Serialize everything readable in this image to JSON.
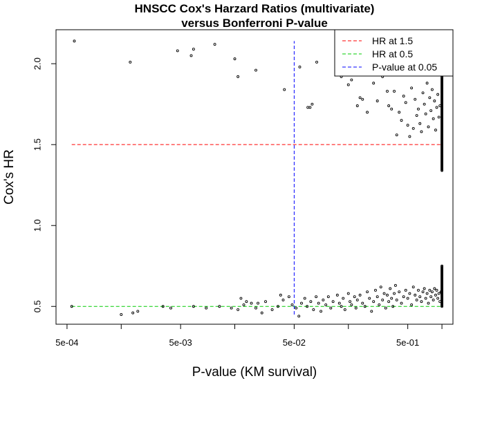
{
  "chart_data": {
    "type": "scatter",
    "title_line1": "HNSCC Cox's Harzard Ratios (multivariate)",
    "title_line2": "versus Bonferroni P-value",
    "xlabel": "P-value (KM survival)",
    "ylabel": "Cox's HR",
    "x_scale": "log10",
    "xlim": [
      0.0004,
      1.25
    ],
    "ylim": [
      0.39,
      2.21
    ],
    "x_ticks": [
      {
        "value": 0.0005,
        "label": "5e-04"
      },
      {
        "value": 0.005,
        "label": "5e-03"
      },
      {
        "value": 0.05,
        "label": "5e-02"
      },
      {
        "value": 0.5,
        "label": "5e-01"
      }
    ],
    "x_minor_ticks": [
      0.0015,
      0.015,
      0.15,
      1.0
    ],
    "y_ticks": [
      {
        "value": 0.5,
        "label": "0.5"
      },
      {
        "value": 1.0,
        "label": "1.0"
      },
      {
        "value": 1.5,
        "label": "1.5"
      },
      {
        "value": 2.0,
        "label": "2.0"
      }
    ],
    "grid": false,
    "legend_position": "top-right",
    "legend": [
      {
        "label": "HR at 1.5",
        "color": "#ff0000"
      },
      {
        "label": "HR at 0.5",
        "color": "#00cc00"
      },
      {
        "label": "P-value at 0.05",
        "color": "#0000ff"
      }
    ],
    "reference_lines": [
      {
        "orientation": "horizontal",
        "value": 1.5,
        "color": "#ff0000",
        "x_range": [
          0.00055,
          1.0
        ]
      },
      {
        "orientation": "horizontal",
        "value": 0.5,
        "color": "#00cc00",
        "x_range": [
          0.00055,
          1.0
        ]
      },
      {
        "orientation": "vertical",
        "value": 0.05,
        "color": "#0000ff",
        "y_range": [
          0.45,
          2.14
        ]
      }
    ],
    "points_high": [
      [
        0.00058,
        2.14
      ],
      [
        0.0018,
        2.01
      ],
      [
        0.0047,
        2.08
      ],
      [
        0.0062,
        2.05
      ],
      [
        0.0065,
        2.09
      ],
      [
        0.01,
        2.12
      ],
      [
        0.015,
        2.03
      ],
      [
        0.016,
        1.92
      ],
      [
        0.023,
        1.96
      ],
      [
        0.041,
        1.84
      ],
      [
        0.056,
        1.98
      ],
      [
        0.066,
        1.73
      ],
      [
        0.069,
        1.73
      ],
      [
        0.072,
        1.75
      ],
      [
        0.079,
        2.01
      ],
      [
        0.13,
        1.92
      ],
      [
        0.15,
        1.87
      ],
      [
        0.16,
        1.9
      ],
      [
        0.18,
        1.74
      ],
      [
        0.19,
        1.79
      ],
      [
        0.2,
        1.78
      ],
      [
        0.22,
        1.7
      ],
      [
        0.24,
        1.93
      ],
      [
        0.25,
        1.88
      ],
      [
        0.27,
        1.77
      ],
      [
        0.3,
        1.92
      ],
      [
        0.33,
        1.83
      ],
      [
        0.34,
        1.74
      ],
      [
        0.36,
        1.72
      ],
      [
        0.38,
        1.83
      ],
      [
        0.4,
        1.56
      ],
      [
        0.42,
        1.7
      ],
      [
        0.44,
        1.65
      ],
      [
        0.46,
        1.8
      ],
      [
        0.48,
        1.76
      ],
      [
        0.5,
        1.62
      ],
      [
        0.52,
        1.55
      ],
      [
        0.54,
        1.85
      ],
      [
        0.56,
        1.6
      ],
      [
        0.58,
        1.78
      ],
      [
        0.6,
        1.68
      ],
      [
        0.62,
        1.72
      ],
      [
        0.64,
        1.63
      ],
      [
        0.66,
        1.58
      ],
      [
        0.68,
        1.82
      ],
      [
        0.7,
        1.75
      ],
      [
        0.72,
        1.69
      ],
      [
        0.74,
        1.88
      ],
      [
        0.76,
        1.61
      ],
      [
        0.78,
        1.79
      ],
      [
        0.8,
        1.71
      ],
      [
        0.82,
        1.84
      ],
      [
        0.84,
        1.66
      ],
      [
        0.86,
        1.77
      ],
      [
        0.88,
        1.59
      ],
      [
        0.9,
        1.73
      ],
      [
        0.92,
        1.81
      ],
      [
        0.94,
        1.67
      ],
      [
        0.96,
        1.74
      ]
    ],
    "points_low": [
      [
        0.00055,
        0.5
      ],
      [
        0.0015,
        0.45
      ],
      [
        0.0019,
        0.46
      ],
      [
        0.0021,
        0.47
      ],
      [
        0.0035,
        0.5
      ],
      [
        0.0041,
        0.49
      ],
      [
        0.0065,
        0.5
      ],
      [
        0.0084,
        0.49
      ],
      [
        0.011,
        0.5
      ],
      [
        0.014,
        0.49
      ],
      [
        0.016,
        0.48
      ],
      [
        0.017,
        0.55
      ],
      [
        0.018,
        0.51
      ],
      [
        0.019,
        0.53
      ],
      [
        0.021,
        0.52
      ],
      [
        0.023,
        0.49
      ],
      [
        0.024,
        0.52
      ],
      [
        0.026,
        0.46
      ],
      [
        0.028,
        0.53
      ],
      [
        0.032,
        0.48
      ],
      [
        0.036,
        0.5
      ],
      [
        0.038,
        0.57
      ],
      [
        0.04,
        0.54
      ],
      [
        0.045,
        0.56
      ],
      [
        0.048,
        0.51
      ],
      [
        0.052,
        0.49
      ],
      [
        0.055,
        0.44
      ],
      [
        0.058,
        0.52
      ],
      [
        0.062,
        0.55
      ],
      [
        0.065,
        0.5
      ],
      [
        0.07,
        0.53
      ],
      [
        0.074,
        0.48
      ],
      [
        0.078,
        0.56
      ],
      [
        0.082,
        0.52
      ],
      [
        0.086,
        0.47
      ],
      [
        0.09,
        0.54
      ],
      [
        0.095,
        0.51
      ],
      [
        0.1,
        0.56
      ],
      [
        0.105,
        0.49
      ],
      [
        0.11,
        0.53
      ],
      [
        0.12,
        0.57
      ],
      [
        0.125,
        0.52
      ],
      [
        0.13,
        0.5
      ],
      [
        0.135,
        0.55
      ],
      [
        0.14,
        0.48
      ],
      [
        0.15,
        0.58
      ],
      [
        0.155,
        0.53
      ],
      [
        0.16,
        0.51
      ],
      [
        0.17,
        0.56
      ],
      [
        0.175,
        0.49
      ],
      [
        0.18,
        0.54
      ],
      [
        0.19,
        0.57
      ],
      [
        0.2,
        0.52
      ],
      [
        0.21,
        0.5
      ],
      [
        0.22,
        0.59
      ],
      [
        0.23,
        0.55
      ],
      [
        0.24,
        0.47
      ],
      [
        0.25,
        0.53
      ],
      [
        0.26,
        0.6
      ],
      [
        0.27,
        0.56
      ],
      [
        0.28,
        0.51
      ],
      [
        0.29,
        0.62
      ],
      [
        0.3,
        0.54
      ],
      [
        0.31,
        0.58
      ],
      [
        0.32,
        0.49
      ],
      [
        0.33,
        0.57
      ],
      [
        0.34,
        0.53
      ],
      [
        0.35,
        0.61
      ],
      [
        0.36,
        0.55
      ],
      [
        0.37,
        0.5
      ],
      [
        0.38,
        0.58
      ],
      [
        0.39,
        0.63
      ],
      [
        0.4,
        0.54
      ],
      [
        0.42,
        0.59
      ],
      [
        0.44,
        0.52
      ],
      [
        0.46,
        0.56
      ],
      [
        0.48,
        0.6
      ],
      [
        0.5,
        0.55
      ],
      [
        0.52,
        0.58
      ],
      [
        0.54,
        0.51
      ],
      [
        0.56,
        0.62
      ],
      [
        0.58,
        0.57
      ],
      [
        0.6,
        0.54
      ],
      [
        0.62,
        0.6
      ],
      [
        0.64,
        0.56
      ],
      [
        0.66,
        0.53
      ],
      [
        0.68,
        0.59
      ],
      [
        0.7,
        0.61
      ],
      [
        0.72,
        0.55
      ],
      [
        0.74,
        0.58
      ],
      [
        0.76,
        0.52
      ],
      [
        0.78,
        0.6
      ],
      [
        0.8,
        0.56
      ],
      [
        0.82,
        0.59
      ],
      [
        0.84,
        0.54
      ],
      [
        0.86,
        0.61
      ],
      [
        0.88,
        0.57
      ],
      [
        0.9,
        0.6
      ],
      [
        0.92,
        0.55
      ],
      [
        0.94,
        0.58
      ],
      [
        0.96,
        0.53
      ],
      [
        0.98,
        0.59
      ]
    ],
    "column_at_1": {
      "x": 1.0,
      "segments": [
        [
          1.34,
          1.92
        ],
        [
          0.5,
          0.75
        ]
      ]
    }
  }
}
